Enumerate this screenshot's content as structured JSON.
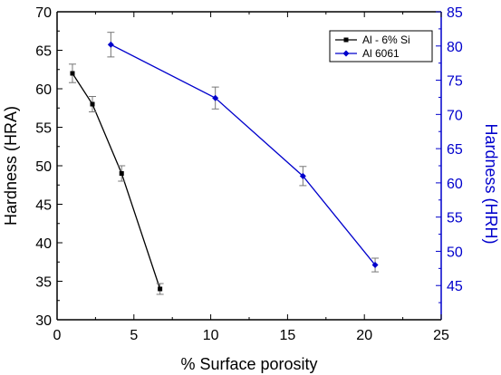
{
  "chart_data": {
    "type": "line",
    "xlabel": "% Surface porosity",
    "xlim": [
      0,
      25
    ],
    "xticks": [
      0,
      5,
      10,
      15,
      20,
      25
    ],
    "y_left": {
      "label": "Hardness (HRA)",
      "lim": [
        30,
        70
      ],
      "ticks": [
        30,
        35,
        40,
        45,
        50,
        55,
        60,
        65,
        70
      ],
      "color": "#000000"
    },
    "y_right": {
      "label": "Hardness (HRH)",
      "lim": [
        40,
        85
      ],
      "ticks": [
        45,
        50,
        55,
        60,
        65,
        70,
        75,
        80,
        85
      ],
      "color": "#0000cc"
    },
    "legend_position": "top-right",
    "series": [
      {
        "name": "Al - 6% Si",
        "axis": "left",
        "color": "#000000",
        "marker": "square",
        "x": [
          1.0,
          2.3,
          4.2,
          6.7
        ],
        "y": [
          62.0,
          58.0,
          49.0,
          34.0
        ],
        "err": [
          1.2,
          1.0,
          1.0,
          0.7
        ]
      },
      {
        "name": "Al 6061",
        "axis": "right",
        "color": "#0000cc",
        "marker": "diamond",
        "x": [
          3.5,
          10.3,
          16.0,
          20.7
        ],
        "y": [
          80.2,
          72.4,
          61.0,
          48.0
        ],
        "err": [
          1.8,
          1.6,
          1.4,
          1.0
        ]
      }
    ]
  }
}
